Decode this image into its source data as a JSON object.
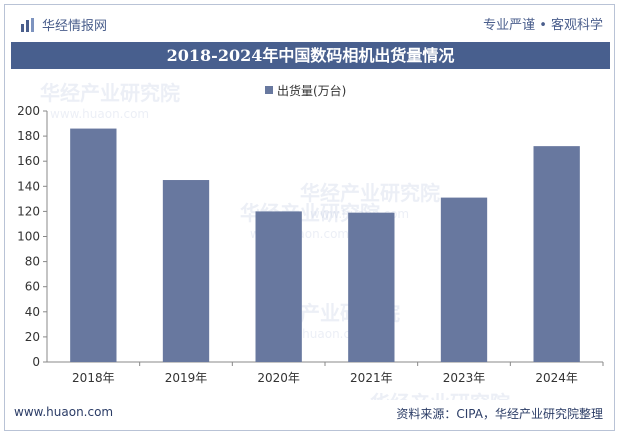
{
  "header": {
    "brand_name": "华经情报网",
    "tagline": "专业严谨 • 客观科学"
  },
  "footer": {
    "website": "www.huaon.com",
    "source": "资料来源：CIPA，华经产业研究院整理"
  },
  "watermark": {
    "cn": "华经产业研究院",
    "en": "www.huaon.com"
  },
  "colors": {
    "bar": "#68789f",
    "title_bg": "#485f8e",
    "header_bg": "#eef2f9",
    "brand_text": "#4a5e8c"
  },
  "chart_data": {
    "type": "bar",
    "title": "2018-2024年中国数码相机出货量情况",
    "categories": [
      "2018年",
      "2019年",
      "2020年",
      "2021年",
      "2023年",
      "2024年"
    ],
    "series": [
      {
        "name": "出货量(万台)",
        "values": [
          186,
          145,
          120,
          119,
          131,
          172
        ]
      }
    ],
    "ylim": [
      0,
      200
    ],
    "yticks": [
      0,
      20,
      40,
      60,
      80,
      100,
      120,
      140,
      160,
      180,
      200
    ],
    "legend_position": "top-center",
    "grid": false
  }
}
